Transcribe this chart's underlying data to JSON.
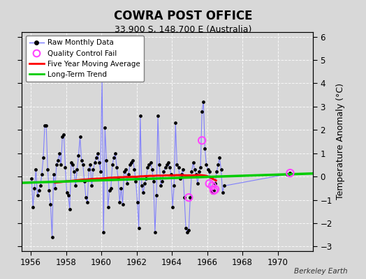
{
  "title": "COWRA POST OFFICE",
  "subtitle": "33.900 S, 148.700 E (Australia)",
  "ylabel": "Temperature Anomaly (°C)",
  "attribution": "Berkeley Earth",
  "ylim": [
    -3.2,
    6.2
  ],
  "xlim": [
    1955.5,
    1972.0
  ],
  "xticks": [
    1956,
    1958,
    1960,
    1962,
    1964,
    1966,
    1968,
    1970
  ],
  "yticks": [
    -3,
    -2,
    -1,
    0,
    1,
    2,
    3,
    4,
    5,
    6
  ],
  "bg_color": "#d8d8d8",
  "plot_bg_color": "#d8d8d8",
  "raw_line_color": "#7777ff",
  "raw_dot_color": "#000000",
  "ma_color": "#ff0000",
  "trend_color": "#00cc00",
  "qc_color": "#ff44ff",
  "raw_data": [
    [
      1956.042,
      -0.1
    ],
    [
      1956.125,
      -1.3
    ],
    [
      1956.208,
      -0.5
    ],
    [
      1956.292,
      0.3
    ],
    [
      1956.375,
      -0.8
    ],
    [
      1956.458,
      -0.6
    ],
    [
      1956.542,
      -0.4
    ],
    [
      1956.625,
      0.1
    ],
    [
      1956.708,
      0.8
    ],
    [
      1956.792,
      2.2
    ],
    [
      1956.875,
      2.2
    ],
    [
      1956.958,
      0.3
    ],
    [
      1957.042,
      -0.6
    ],
    [
      1957.125,
      -1.2
    ],
    [
      1957.208,
      -2.6
    ],
    [
      1957.292,
      0.1
    ],
    [
      1957.375,
      -0.5
    ],
    [
      1957.458,
      0.5
    ],
    [
      1957.542,
      0.7
    ],
    [
      1957.625,
      1.0
    ],
    [
      1957.708,
      0.5
    ],
    [
      1957.792,
      1.7
    ],
    [
      1957.875,
      1.8
    ],
    [
      1957.958,
      0.4
    ],
    [
      1958.042,
      -0.7
    ],
    [
      1958.125,
      -0.8
    ],
    [
      1958.208,
      -1.4
    ],
    [
      1958.292,
      0.6
    ],
    [
      1958.375,
      0.5
    ],
    [
      1958.458,
      0.2
    ],
    [
      1958.542,
      -0.4
    ],
    [
      1958.625,
      0.3
    ],
    [
      1958.708,
      0.9
    ],
    [
      1958.792,
      1.7
    ],
    [
      1958.875,
      0.7
    ],
    [
      1958.958,
      0.5
    ],
    [
      1959.042,
      -0.2
    ],
    [
      1959.125,
      -0.9
    ],
    [
      1959.208,
      -1.1
    ],
    [
      1959.292,
      0.3
    ],
    [
      1959.375,
      0.5
    ],
    [
      1959.458,
      -0.4
    ],
    [
      1959.542,
      0.3
    ],
    [
      1959.625,
      0.6
    ],
    [
      1959.708,
      0.8
    ],
    [
      1959.792,
      1.0
    ],
    [
      1959.875,
      0.6
    ],
    [
      1959.958,
      0.2
    ],
    [
      1960.042,
      4.3
    ],
    [
      1960.125,
      -2.4
    ],
    [
      1960.208,
      2.1
    ],
    [
      1960.292,
      0.7
    ],
    [
      1960.375,
      -1.3
    ],
    [
      1960.458,
      -0.6
    ],
    [
      1960.542,
      -0.5
    ],
    [
      1960.625,
      0.5
    ],
    [
      1960.708,
      0.8
    ],
    [
      1960.792,
      1.0
    ],
    [
      1960.875,
      0.4
    ],
    [
      1960.958,
      -0.1
    ],
    [
      1961.042,
      -1.1
    ],
    [
      1961.125,
      -0.5
    ],
    [
      1961.208,
      -1.2
    ],
    [
      1961.292,
      0.2
    ],
    [
      1961.375,
      0.3
    ],
    [
      1961.458,
      -0.3
    ],
    [
      1961.542,
      0.1
    ],
    [
      1961.625,
      0.5
    ],
    [
      1961.708,
      0.6
    ],
    [
      1961.792,
      0.7
    ],
    [
      1961.875,
      0.3
    ],
    [
      1961.958,
      -0.2
    ],
    [
      1962.042,
      -1.1
    ],
    [
      1962.125,
      -2.2
    ],
    [
      1962.208,
      2.6
    ],
    [
      1962.292,
      -0.4
    ],
    [
      1962.375,
      -0.7
    ],
    [
      1962.458,
      -0.3
    ],
    [
      1962.542,
      -0.1
    ],
    [
      1962.625,
      0.4
    ],
    [
      1962.708,
      0.5
    ],
    [
      1962.792,
      0.6
    ],
    [
      1962.875,
      0.3
    ],
    [
      1962.958,
      -0.2
    ],
    [
      1963.042,
      -2.4
    ],
    [
      1963.125,
      -0.8
    ],
    [
      1963.208,
      2.6
    ],
    [
      1963.292,
      0.5
    ],
    [
      1963.375,
      -0.4
    ],
    [
      1963.458,
      -0.2
    ],
    [
      1963.542,
      0.2
    ],
    [
      1963.625,
      0.4
    ],
    [
      1963.708,
      0.5
    ],
    [
      1963.792,
      0.6
    ],
    [
      1963.875,
      0.4
    ],
    [
      1963.958,
      0.1
    ],
    [
      1964.042,
      -1.3
    ],
    [
      1964.125,
      -0.4
    ],
    [
      1964.208,
      2.3
    ],
    [
      1964.292,
      0.5
    ],
    [
      1964.375,
      0.4
    ],
    [
      1964.458,
      -0.1
    ],
    [
      1964.542,
      0.1
    ],
    [
      1964.625,
      0.3
    ],
    [
      1964.708,
      -0.9
    ],
    [
      1964.792,
      -2.2
    ],
    [
      1964.875,
      -2.4
    ],
    [
      1964.958,
      -2.3
    ],
    [
      1965.042,
      -0.9
    ],
    [
      1965.125,
      0.2
    ],
    [
      1965.208,
      0.6
    ],
    [
      1965.292,
      0.3
    ],
    [
      1965.375,
      0.1
    ],
    [
      1965.458,
      -0.3
    ],
    [
      1965.542,
      0.2
    ],
    [
      1965.625,
      0.4
    ],
    [
      1965.708,
      2.8
    ],
    [
      1965.792,
      3.2
    ],
    [
      1965.875,
      1.2
    ],
    [
      1965.958,
      0.5
    ],
    [
      1966.042,
      0.3
    ],
    [
      1966.125,
      0.2
    ],
    [
      1966.208,
      -0.6
    ],
    [
      1966.292,
      -0.7
    ],
    [
      1966.375,
      -0.6
    ],
    [
      1966.458,
      -0.3
    ],
    [
      1966.542,
      0.2
    ],
    [
      1966.625,
      0.5
    ],
    [
      1966.708,
      0.8
    ],
    [
      1966.792,
      0.3
    ],
    [
      1966.875,
      -0.7
    ],
    [
      1966.958,
      -0.4
    ],
    [
      1970.542,
      0.1
    ],
    [
      1970.625,
      0.1
    ],
    [
      1970.708,
      0.15
    ]
  ],
  "qc_fail_points": [
    [
      1964.958,
      -0.9
    ],
    [
      1965.708,
      1.55
    ],
    [
      1966.125,
      -0.3
    ],
    [
      1966.292,
      -0.4
    ],
    [
      1966.375,
      -0.6
    ],
    [
      1966.458,
      -0.55
    ],
    [
      1970.708,
      0.15
    ]
  ],
  "moving_avg": [
    [
      1957.375,
      -0.26
    ],
    [
      1957.5,
      -0.25
    ],
    [
      1957.625,
      -0.24
    ],
    [
      1957.75,
      -0.23
    ],
    [
      1957.875,
      -0.22
    ],
    [
      1958.0,
      -0.21
    ],
    [
      1958.125,
      -0.2
    ],
    [
      1958.25,
      -0.19
    ],
    [
      1958.375,
      -0.18
    ],
    [
      1958.5,
      -0.17
    ],
    [
      1958.625,
      -0.16
    ],
    [
      1958.75,
      -0.15
    ],
    [
      1958.875,
      -0.14
    ],
    [
      1959.0,
      -0.13
    ],
    [
      1959.125,
      -0.13
    ],
    [
      1959.25,
      -0.12
    ],
    [
      1959.375,
      -0.11
    ],
    [
      1959.5,
      -0.1
    ],
    [
      1959.625,
      -0.1
    ],
    [
      1959.75,
      -0.09
    ],
    [
      1959.875,
      -0.09
    ],
    [
      1960.0,
      -0.08
    ],
    [
      1960.125,
      -0.08
    ],
    [
      1960.25,
      -0.07
    ],
    [
      1960.375,
      -0.06
    ],
    [
      1960.5,
      -0.05
    ],
    [
      1960.625,
      -0.05
    ],
    [
      1960.75,
      -0.04
    ],
    [
      1960.875,
      -0.04
    ],
    [
      1961.0,
      -0.03
    ],
    [
      1961.125,
      -0.03
    ],
    [
      1961.25,
      -0.03
    ],
    [
      1961.375,
      -0.02
    ],
    [
      1961.5,
      -0.02
    ],
    [
      1961.625,
      -0.02
    ],
    [
      1961.75,
      -0.01
    ],
    [
      1961.875,
      -0.01
    ],
    [
      1962.0,
      -0.01
    ],
    [
      1962.125,
      0.0
    ],
    [
      1962.25,
      0.01
    ],
    [
      1962.375,
      0.01
    ],
    [
      1962.5,
      0.02
    ],
    [
      1962.625,
      0.02
    ],
    [
      1962.75,
      0.03
    ],
    [
      1962.875,
      0.03
    ],
    [
      1963.0,
      0.03
    ],
    [
      1963.125,
      0.04
    ],
    [
      1963.25,
      0.04
    ],
    [
      1963.375,
      0.04
    ],
    [
      1963.5,
      0.04
    ],
    [
      1963.625,
      0.05
    ],
    [
      1963.75,
      0.05
    ],
    [
      1963.875,
      0.05
    ],
    [
      1964.0,
      0.05
    ],
    [
      1964.125,
      0.05
    ],
    [
      1964.25,
      0.06
    ],
    [
      1964.375,
      0.06
    ],
    [
      1964.5,
      0.06
    ],
    [
      1964.625,
      0.06
    ],
    [
      1964.75,
      0.05
    ],
    [
      1964.875,
      0.05
    ],
    [
      1965.0,
      0.05
    ],
    [
      1965.125,
      0.05
    ],
    [
      1965.25,
      0.05
    ],
    [
      1965.375,
      0.06
    ],
    [
      1965.5,
      0.06
    ],
    [
      1965.625,
      0.06
    ],
    [
      1965.75,
      0.05
    ],
    [
      1965.875,
      0.04
    ],
    [
      1966.0,
      0.02
    ],
    [
      1966.125,
      -0.02
    ],
    [
      1966.25,
      -0.07
    ],
    [
      1966.375,
      -0.12
    ],
    [
      1966.5,
      -0.17
    ]
  ],
  "trend_line": [
    [
      1955.5,
      -0.27
    ],
    [
      1972.0,
      0.13
    ]
  ]
}
